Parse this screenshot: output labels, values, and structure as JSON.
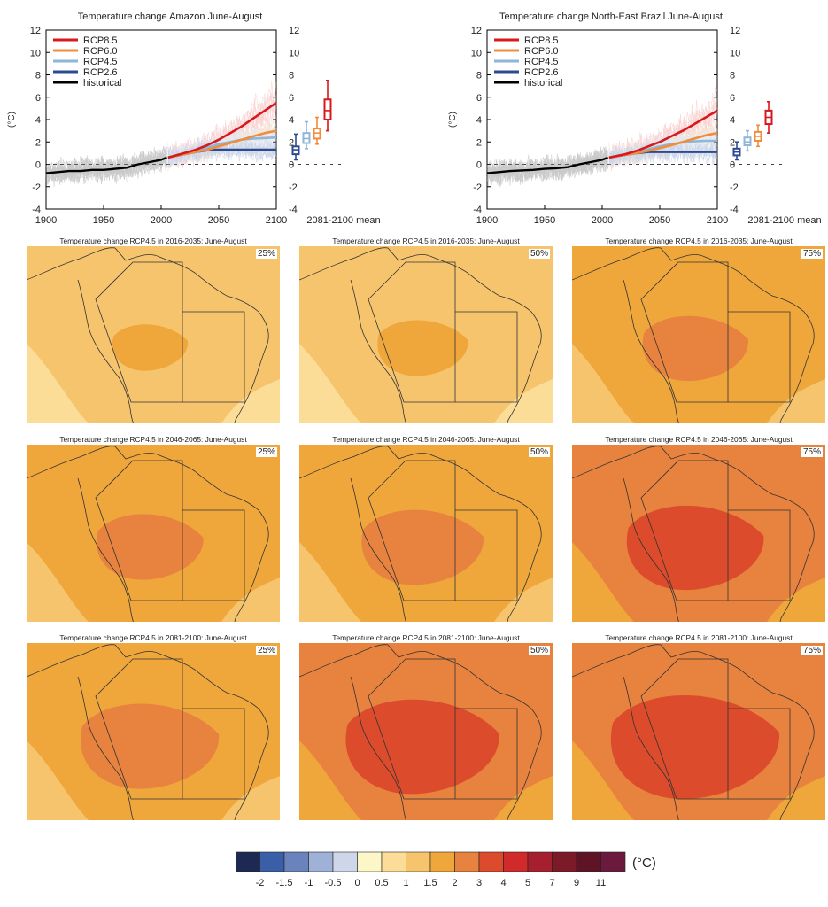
{
  "chart_data": [
    {
      "type": "line",
      "title": "Temperature change Amazon June-August",
      "ylabel": "(°C)",
      "xlim": [
        1900,
        2100
      ],
      "ylim": [
        -4,
        12
      ],
      "xticks": [
        "1900",
        "1950",
        "2000",
        "2050",
        "2100"
      ],
      "yticks": [
        "-4",
        "-2",
        "0",
        "2",
        "4",
        "6",
        "8",
        "10",
        "12"
      ],
      "legend": "top-left",
      "box_axis_label": "2081-2100 mean",
      "series": [
        {
          "name": "RCP8.5",
          "color": "#d7191c",
          "x": [
            2006,
            2020,
            2030,
            2040,
            2050,
            2060,
            2070,
            2080,
            2090,
            2100
          ],
          "y": [
            0.6,
            1.0,
            1.3,
            1.7,
            2.2,
            2.8,
            3.4,
            4.1,
            4.8,
            5.5
          ]
        },
        {
          "name": "RCP6.0",
          "color": "#f28c38",
          "x": [
            2006,
            2020,
            2030,
            2040,
            2050,
            2060,
            2070,
            2080,
            2090,
            2100
          ],
          "y": [
            0.6,
            0.9,
            1.1,
            1.3,
            1.6,
            1.9,
            2.2,
            2.5,
            2.8,
            3.0
          ]
        },
        {
          "name": "RCP4.5",
          "color": "#8fb5d8",
          "x": [
            2006,
            2020,
            2030,
            2040,
            2050,
            2060,
            2070,
            2080,
            2090,
            2100
          ],
          "y": [
            0.6,
            0.95,
            1.2,
            1.5,
            1.8,
            2.0,
            2.2,
            2.3,
            2.35,
            2.4
          ]
        },
        {
          "name": "RCP2.6",
          "color": "#2c4a8f",
          "x": [
            2006,
            2020,
            2030,
            2040,
            2050,
            2060,
            2070,
            2080,
            2090,
            2100
          ],
          "y": [
            0.6,
            0.9,
            1.1,
            1.25,
            1.3,
            1.3,
            1.3,
            1.3,
            1.3,
            1.3
          ]
        },
        {
          "name": "historical",
          "color": "#000000",
          "x": [
            1900,
            1910,
            1920,
            1930,
            1940,
            1950,
            1960,
            1970,
            1980,
            1990,
            2000,
            2005
          ],
          "y": [
            -0.8,
            -0.7,
            -0.6,
            -0.6,
            -0.5,
            -0.5,
            -0.4,
            -0.3,
            0.0,
            0.2,
            0.4,
            0.6
          ]
        }
      ],
      "boxes": [
        {
          "name": "RCP2.6",
          "color": "#2c4a8f",
          "whisker_low": 0.4,
          "q1": 0.9,
          "median": 1.3,
          "q3": 1.6,
          "whisker_high": 2.7
        },
        {
          "name": "RCP4.5",
          "color": "#8fb5d8",
          "whisker_low": 1.4,
          "q1": 1.9,
          "median": 2.3,
          "q3": 2.8,
          "whisker_high": 3.8
        },
        {
          "name": "RCP6.0",
          "color": "#f28c38",
          "whisker_low": 1.8,
          "q1": 2.3,
          "median": 2.8,
          "q3": 3.2,
          "whisker_high": 4.2
        },
        {
          "name": "RCP8.5",
          "color": "#d7191c",
          "whisker_low": 3.0,
          "q1": 4.0,
          "median": 4.8,
          "q3": 5.8,
          "whisker_high": 7.5
        }
      ]
    },
    {
      "type": "line",
      "title": "Temperature change North-East Brazil June-August",
      "ylabel": "(°C)",
      "xlim": [
        1900,
        2100
      ],
      "ylim": [
        -4,
        12
      ],
      "xticks": [
        "1900",
        "1950",
        "2000",
        "2050",
        "2100"
      ],
      "yticks": [
        "-4",
        "-2",
        "0",
        "2",
        "4",
        "6",
        "8",
        "10",
        "12"
      ],
      "legend": "top-left",
      "box_axis_label": "2081-2100 mean",
      "series": [
        {
          "name": "RCP8.5",
          "color": "#d7191c",
          "x": [
            2006,
            2020,
            2030,
            2040,
            2050,
            2060,
            2070,
            2080,
            2090,
            2100
          ],
          "y": [
            0.6,
            0.9,
            1.2,
            1.6,
            2.0,
            2.5,
            3.0,
            3.6,
            4.2,
            4.8
          ]
        },
        {
          "name": "RCP6.0",
          "color": "#f28c38",
          "x": [
            2006,
            2020,
            2030,
            2040,
            2050,
            2060,
            2070,
            2080,
            2090,
            2100
          ],
          "y": [
            0.6,
            0.85,
            1.0,
            1.2,
            1.45,
            1.7,
            2.0,
            2.3,
            2.6,
            2.8
          ]
        },
        {
          "name": "RCP4.5",
          "color": "#8fb5d8",
          "x": [
            2006,
            2020,
            2030,
            2040,
            2050,
            2060,
            2070,
            2080,
            2090,
            2100
          ],
          "y": [
            0.6,
            0.9,
            1.1,
            1.35,
            1.6,
            1.8,
            1.95,
            2.05,
            2.1,
            2.1
          ]
        },
        {
          "name": "RCP2.6",
          "color": "#2c4a8f",
          "x": [
            2006,
            2020,
            2030,
            2040,
            2050,
            2060,
            2070,
            2080,
            2090,
            2100
          ],
          "y": [
            0.6,
            0.85,
            1.0,
            1.1,
            1.1,
            1.1,
            1.1,
            1.1,
            1.1,
            1.1
          ]
        },
        {
          "name": "historical",
          "color": "#000000",
          "x": [
            1900,
            1910,
            1920,
            1930,
            1940,
            1950,
            1960,
            1970,
            1980,
            1990,
            2000,
            2005
          ],
          "y": [
            -0.8,
            -0.7,
            -0.6,
            -0.55,
            -0.5,
            -0.4,
            -0.35,
            -0.25,
            0.0,
            0.2,
            0.4,
            0.6
          ]
        }
      ],
      "boxes": [
        {
          "name": "RCP2.6",
          "color": "#2c4a8f",
          "whisker_low": 0.4,
          "q1": 0.8,
          "median": 1.1,
          "q3": 1.4,
          "whisker_high": 2.0
        },
        {
          "name": "RCP4.5",
          "color": "#8fb5d8",
          "whisker_low": 1.2,
          "q1": 1.7,
          "median": 2.0,
          "q3": 2.4,
          "whisker_high": 3.0
        },
        {
          "name": "RCP6.0",
          "color": "#f28c38",
          "whisker_low": 1.6,
          "q1": 2.1,
          "median": 2.5,
          "q3": 2.9,
          "whisker_high": 3.5
        },
        {
          "name": "RCP8.5",
          "color": "#d7191c",
          "whisker_low": 2.8,
          "q1": 3.6,
          "median": 4.2,
          "q3": 4.8,
          "whisker_high": 5.6
        }
      ]
    },
    {
      "type": "heatmap",
      "panels": [
        {
          "title": "Temperature change RCP4.5 in 2016-2035: June-August",
          "percentile": "25%",
          "level": 1
        },
        {
          "title": "Temperature change RCP4.5 in 2016-2035: June-August",
          "percentile": "50%",
          "level": 1
        },
        {
          "title": "Temperature change RCP4.5 in 2016-2035: June-August",
          "percentile": "75%",
          "level": 1.5
        },
        {
          "title": "Temperature change RCP4.5 in 2046-2065: June-August",
          "percentile": "25%",
          "level": 1.5
        },
        {
          "title": "Temperature change RCP4.5 in 2046-2065: June-August",
          "percentile": "50%",
          "level": 1.5
        },
        {
          "title": "Temperature change RCP4.5 in 2046-2065: June-August",
          "percentile": "75%",
          "level": 2
        },
        {
          "title": "Temperature change RCP4.5 in 2081-2100: June-August",
          "percentile": "25%",
          "level": 1.5
        },
        {
          "title": "Temperature change RCP4.5 in 2081-2100: June-August",
          "percentile": "50%",
          "level": 2
        },
        {
          "title": "Temperature change RCP4.5 in 2081-2100: June-August",
          "percentile": "75%",
          "level": 2
        }
      ]
    }
  ],
  "colorbar": {
    "unit": "(°C)",
    "labels": [
      "-2",
      "-1.5",
      "-1",
      "-0.5",
      "0",
      "0.5",
      "1",
      "1.5",
      "2",
      "3",
      "4",
      "5",
      "7",
      "9",
      "11"
    ],
    "colors": [
      "#1d2952",
      "#3b5ea8",
      "#6b83bd",
      "#9fb1d6",
      "#cdd7e9",
      "#fdf6c8",
      "#fbdd97",
      "#f7c46e",
      "#efa73c",
      "#e8833f",
      "#dc4b2b",
      "#d12a2b",
      "#a61f2e",
      "#7c1a28",
      "#5e1424",
      "#6b1a3d"
    ]
  }
}
